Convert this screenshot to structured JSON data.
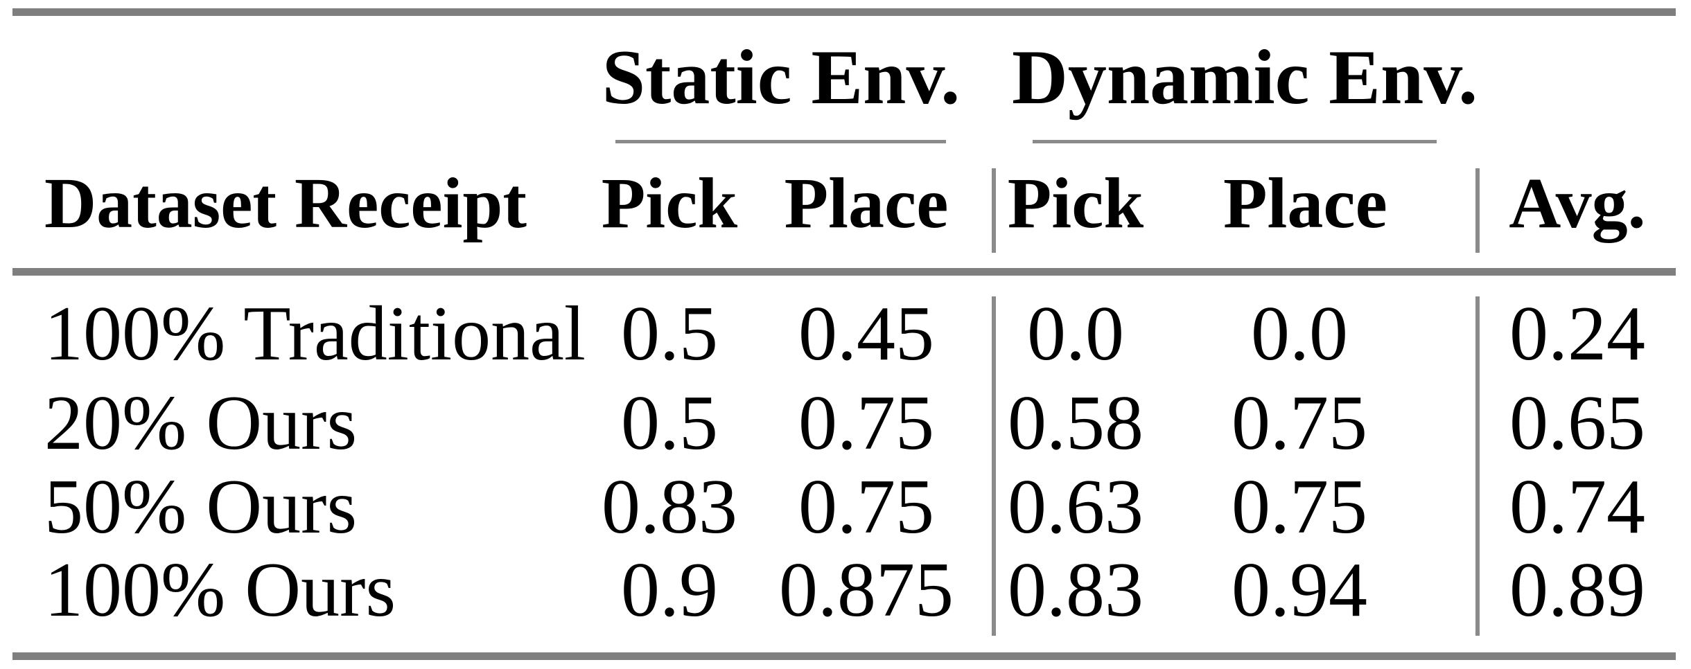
{
  "table": {
    "col_groups": [
      {
        "label": "Static Env."
      },
      {
        "label": "Dynamic Env."
      }
    ],
    "headers": {
      "dataset": "Dataset Receipt",
      "static_pick": "Pick",
      "static_place": "Place",
      "dynamic_pick": "Pick",
      "dynamic_place": "Place",
      "avg": "Avg."
    },
    "rows": [
      {
        "label": "100% Traditional",
        "static_pick": "0.5",
        "static_place": "0.45",
        "dynamic_pick": "0.0",
        "dynamic_place": "0.0",
        "avg": "0.24"
      },
      {
        "label": "20% Ours",
        "static_pick": "0.5",
        "static_place": "0.75",
        "dynamic_pick": "0.58",
        "dynamic_place": "0.75",
        "avg": "0.65"
      },
      {
        "label": "50% Ours",
        "static_pick": "0.83",
        "static_place": "0.75",
        "dynamic_pick": "0.63",
        "dynamic_place": "0.75",
        "avg": "0.74"
      },
      {
        "label": "100% Ours",
        "static_pick": "0.9",
        "static_place": "0.875",
        "dynamic_pick": "0.83",
        "dynamic_place": "0.94",
        "avg": "0.89"
      }
    ]
  },
  "colors": {
    "rule_thick": "#7f7f7f",
    "rule_thin": "#8a8a8a",
    "text": "#000000",
    "background": "#ffffff"
  },
  "chart_data": {
    "type": "table",
    "title": "",
    "column_groups": [
      "Static Env.",
      "Dynamic Env."
    ],
    "columns": [
      "Dataset Receipt",
      "Static Env. Pick",
      "Static Env. Place",
      "Dynamic Env. Pick",
      "Dynamic Env. Place",
      "Avg."
    ],
    "rows": [
      [
        "100% Traditional",
        0.5,
        0.45,
        0.0,
        0.0,
        0.24
      ],
      [
        "20% Ours",
        0.5,
        0.75,
        0.58,
        0.75,
        0.65
      ],
      [
        "50% Ours",
        0.83,
        0.75,
        0.63,
        0.75,
        0.74
      ],
      [
        "100% Ours",
        0.9,
        0.875,
        0.83,
        0.94,
        0.89
      ]
    ]
  }
}
